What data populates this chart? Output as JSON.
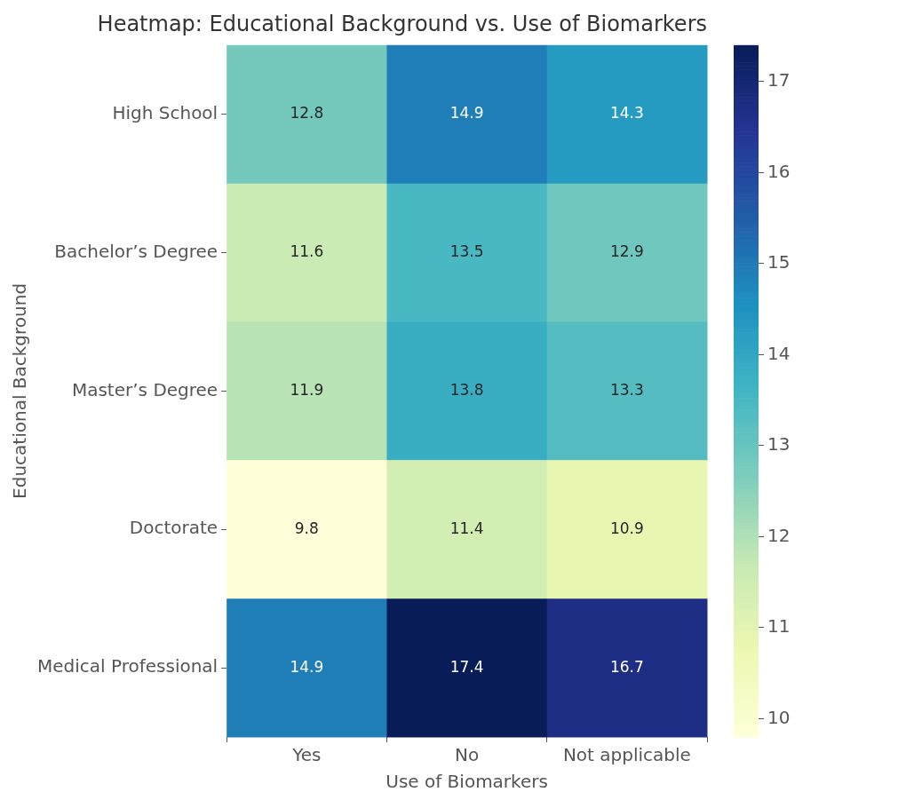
{
  "chart_data": {
    "type": "heatmap",
    "title": "Heatmap: Educational Background vs. Use of Biomarkers",
    "xlabel": "Use of Biomarkers",
    "ylabel": "Educational Background",
    "categories": [
      "Yes",
      "No",
      "Not applicable"
    ],
    "y_categories": [
      "High School",
      "Bachelor’s Degree",
      "Master’s Degree",
      "Doctorate",
      "Medical Professional"
    ],
    "cells": [
      [
        12.8,
        14.9,
        14.3
      ],
      [
        11.6,
        13.5,
        12.9
      ],
      [
        11.9,
        13.8,
        13.3
      ],
      [
        9.8,
        11.4,
        10.9
      ],
      [
        14.9,
        17.4,
        16.7
      ]
    ],
    "clim": [
      9.8,
      17.4
    ],
    "cticks": [
      10,
      11,
      12,
      13,
      14,
      15,
      16,
      17
    ],
    "data_labels": true
  }
}
